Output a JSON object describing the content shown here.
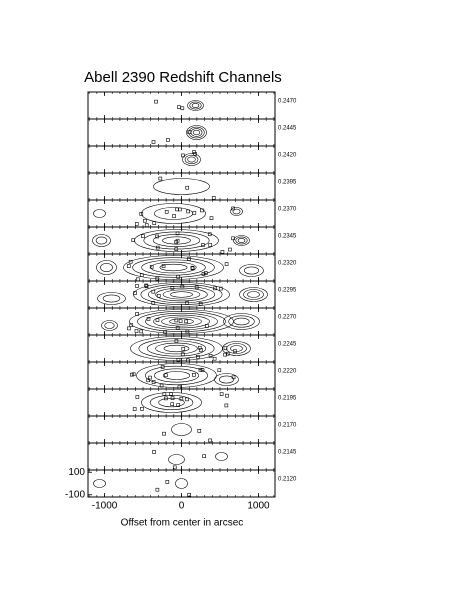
{
  "chart_data": {
    "type": "channel-map",
    "title": "Abell 2390 Redshift Channels",
    "xlabel": "Offset from center in arcsec",
    "channels": [
      "0.2470",
      "0.2445",
      "0.2420",
      "0.2395",
      "0.2370",
      "0.2345",
      "0.2320",
      "0.2295",
      "0.2270",
      "0.2245",
      "0.2220",
      "0.2195",
      "0.2170",
      "0.2145",
      "0.2120"
    ],
    "xlim": [
      -1215,
      1215
    ],
    "xticks": [
      -1000,
      0,
      1000
    ],
    "ylim": [
      -120,
      120
    ],
    "yticks": [
      100,
      -100
    ]
  }
}
